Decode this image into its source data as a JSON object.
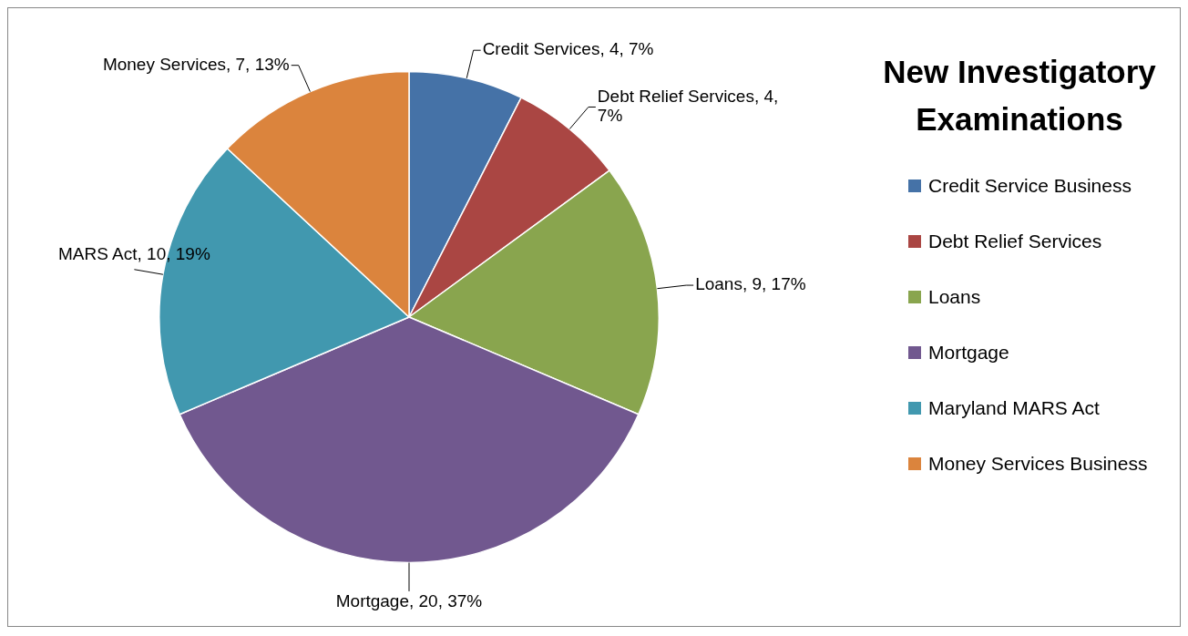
{
  "chart_data": {
    "type": "pie",
    "title": "New Investigatory Examinations",
    "categories": [
      "Credit Service Business",
      "Debt Relief Services",
      "Loans",
      "Mortgage",
      "Maryland MARS Act",
      "Money Services Business"
    ],
    "values": [
      4,
      4,
      9,
      20,
      10,
      7
    ],
    "colors": [
      "#4572a7",
      "#aa4643",
      "#89a54e",
      "#71588f",
      "#4198af",
      "#db843d"
    ],
    "value_labels": [
      "Credit Services, 4, 7%",
      "Debt Relief Services, 4, 7%",
      "Loans, 9, 17%",
      "Mortgage, 20, 37%",
      "MARS Act, 10, 19%",
      "Money Services, 7, 13%"
    ],
    "legend": "right"
  }
}
